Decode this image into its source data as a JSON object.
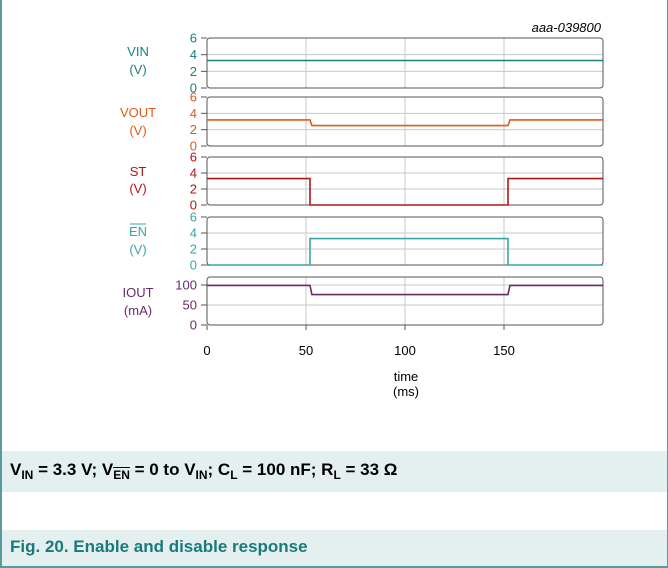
{
  "chart_data": {
    "type": "line",
    "title": "",
    "code": "aaa-039800",
    "xlabel": "time",
    "xunit": "(ms)",
    "xlim": [
      0,
      200
    ],
    "xticks": [
      0,
      50,
      100,
      150
    ],
    "grid": true,
    "panels": [
      {
        "label": "VIN",
        "unit": "(V)",
        "color": "#1a8080",
        "ylim": [
          0,
          6
        ],
        "yticks": [
          0,
          2,
          4,
          6
        ],
        "x": [
          0,
          200
        ],
        "y": [
          3.3,
          3.3
        ]
      },
      {
        "label": "VOUT",
        "unit": "(V)",
        "color": "#e05a1e",
        "ylim": [
          0,
          6
        ],
        "yticks": [
          0,
          2,
          4,
          6
        ],
        "x": [
          0,
          52,
          53,
          152,
          153,
          200
        ],
        "y": [
          3.2,
          3.2,
          2.5,
          2.5,
          3.2,
          3.2
        ]
      },
      {
        "label": "ST",
        "unit": "(V)",
        "color": "#b01818",
        "ylim": [
          0,
          6
        ],
        "yticks": [
          0,
          2,
          4,
          6
        ],
        "x": [
          0,
          52,
          52,
          152,
          152,
          200
        ],
        "y": [
          3.3,
          3.3,
          0,
          0,
          3.3,
          3.3
        ]
      },
      {
        "label": "EN",
        "label_overline": true,
        "unit": "(V)",
        "color": "#3aa6a6",
        "ylim": [
          0,
          6
        ],
        "yticks": [
          0,
          2,
          4,
          6
        ],
        "x": [
          0,
          52,
          52,
          152,
          152,
          200
        ],
        "y": [
          0,
          0,
          3.3,
          3.3,
          0,
          0
        ]
      },
      {
        "label": "IOUT",
        "unit": "(mA)",
        "color": "#6a2a6a",
        "ylim": [
          0,
          120
        ],
        "yticks": [
          0,
          50,
          100
        ],
        "x": [
          0,
          52,
          53,
          152,
          153,
          200
        ],
        "y": [
          99,
          99,
          76,
          76,
          99,
          99
        ]
      }
    ]
  },
  "conditions": {
    "v1": "V",
    "v1_sub": "IN",
    "v1_val": " = 3.3 V; V",
    "v2_sub": "EN",
    "v2_val": " = 0 to V",
    "v3_sub": "IN",
    "v3_val": "; C",
    "c_sub": "L",
    "c_val": " = 100 nF; R",
    "r_sub": "L",
    "r_val": " = 33 Ω"
  },
  "caption": "Fig. 20.  Enable and disable response"
}
